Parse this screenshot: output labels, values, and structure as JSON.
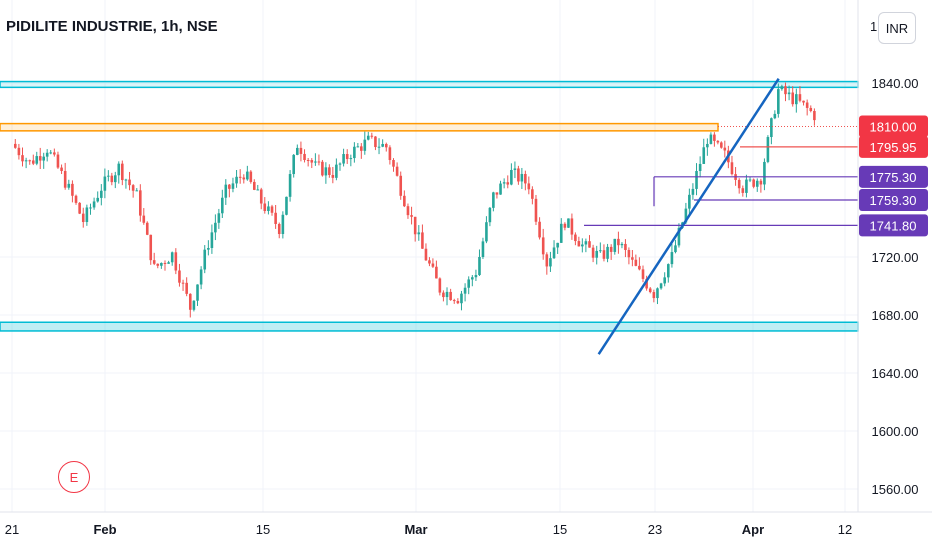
{
  "header": {
    "title": "PIDILITE INDUSTRIE, 1h, NSE",
    "currency": "INR"
  },
  "earnings_marker": "E",
  "chart_data": {
    "type": "candlestick",
    "ylim": [
      1540,
      1880
    ],
    "y_ticks": [
      {
        "value": 1840,
        "label": "1840.00"
      },
      {
        "value": 1720,
        "label": "1720.00"
      },
      {
        "value": 1680,
        "label": "1680.00"
      },
      {
        "value": 1640,
        "label": "1640.00"
      },
      {
        "value": 1600,
        "label": "1600.00"
      },
      {
        "value": 1560,
        "label": "1560.00"
      }
    ],
    "top_tick_label": "1",
    "x_ticks": [
      "21",
      "Feb",
      "15",
      "Mar",
      "15",
      "23",
      "Apr",
      "12"
    ],
    "price_labels": [
      {
        "value": 1810.0,
        "label": "1810.00",
        "color": "#f23645"
      },
      {
        "value": 1795.95,
        "label": "1795.95",
        "color": "#f23645"
      },
      {
        "value": 1775.3,
        "label": "1775.30",
        "color": "#673ab7"
      },
      {
        "value": 1759.3,
        "label": "1759.30",
        "color": "#673ab7"
      },
      {
        "value": 1741.8,
        "label": "1741.80",
        "color": "#673ab7"
      }
    ],
    "resistance_band": [
      1837,
      1841
    ],
    "support_band": [
      1669,
      1675
    ],
    "orange_band": [
      1807,
      1812
    ],
    "trendline": {
      "start": {
        "x": "Mar 17",
        "y": 1653
      },
      "end": {
        "x": "Apr 3",
        "y": 1843
      }
    },
    "colors": {
      "up": "#26a69a",
      "down": "#ef5350",
      "cyan": "#00bcd4",
      "orange": "#ff9800",
      "trend": "#1565c0",
      "purple": "#673ab7"
    },
    "candles": [
      {
        "x": 0.5,
        "c": 1798
      },
      {
        "x": 3.1,
        "c": 1785
      },
      {
        "x": 5.6,
        "c": 1795
      },
      {
        "x": 8.2,
        "c": 1772
      },
      {
        "x": 10.8,
        "c": 1745
      },
      {
        "x": 13.4,
        "c": 1768
      },
      {
        "x": 15.9,
        "c": 1782
      },
      {
        "x": 18.5,
        "c": 1762
      },
      {
        "x": 21.0,
        "c": 1712
      },
      {
        "x": 23.6,
        "c": 1722
      },
      {
        "x": 26.2,
        "c": 1685
      },
      {
        "x": 28.8,
        "c": 1730
      },
      {
        "x": 31.3,
        "c": 1765
      },
      {
        "x": 33.9,
        "c": 1778
      },
      {
        "x": 36.4,
        "c": 1758
      },
      {
        "x": 39.0,
        "c": 1740
      },
      {
        "x": 41.6,
        "c": 1798
      },
      {
        "x": 44.2,
        "c": 1782
      },
      {
        "x": 46.7,
        "c": 1778
      },
      {
        "x": 49.3,
        "c": 1792
      },
      {
        "x": 51.8,
        "c": 1800
      },
      {
        "x": 54.4,
        "c": 1796
      },
      {
        "x": 57.0,
        "c": 1760
      },
      {
        "x": 59.6,
        "c": 1725
      },
      {
        "x": 62.1,
        "c": 1698
      },
      {
        "x": 64.7,
        "c": 1692
      },
      {
        "x": 67.3,
        "c": 1710
      },
      {
        "x": 69.8,
        "c": 1762
      },
      {
        "x": 72.4,
        "c": 1778
      },
      {
        "x": 74.9,
        "c": 1770
      },
      {
        "x": 77.5,
        "c": 1716
      },
      {
        "x": 80.1,
        "c": 1745
      },
      {
        "x": 82.6,
        "c": 1728
      },
      {
        "x": 85.2,
        "c": 1720
      },
      {
        "x": 87.8,
        "c": 1730
      },
      {
        "x": 90.3,
        "c": 1712
      },
      {
        "x": 92.9,
        "c": 1695
      },
      {
        "x": 95.5,
        "c": 1720
      },
      {
        "x": 98.0,
        "c": 1760
      },
      {
        "x": 100.6,
        "c": 1802
      },
      {
        "x": 103.1,
        "c": 1790
      },
      {
        "x": 105.7,
        "c": 1768
      },
      {
        "x": 108.3,
        "c": 1775
      },
      {
        "x": 110.8,
        "c": 1835
      },
      {
        "x": 113.4,
        "c": 1828
      },
      {
        "x": 116.0,
        "c": 1818
      }
    ]
  }
}
